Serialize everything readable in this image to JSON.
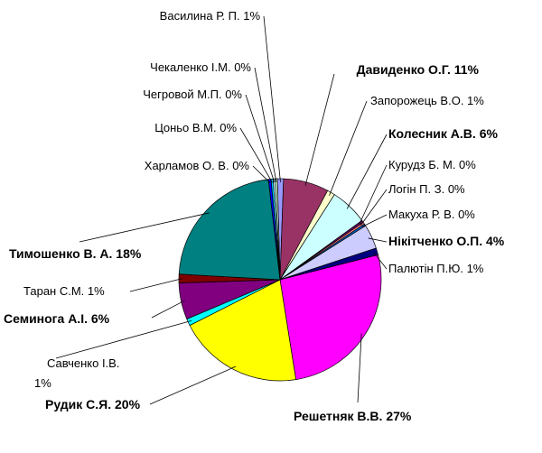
{
  "chart_data": {
    "type": "pie",
    "title": "",
    "slices": [
      {
        "label": "Василина Р. П.",
        "value": 1,
        "pct_label": "1%",
        "color": "#9999ff"
      },
      {
        "label": "Давиденко О.Г.",
        "value": 11,
        "pct_label": "11%",
        "color": "#993366"
      },
      {
        "label": "Запорожець В.О.",
        "value": 1,
        "pct_label": "1%",
        "color": "#ffffcc"
      },
      {
        "label": "Колесник А.В.",
        "value": 6,
        "pct_label": "6%",
        "color": "#ccffff"
      },
      {
        "label": "Курудз Б. М.",
        "value": 0,
        "pct_label": "0%",
        "color": "#660066"
      },
      {
        "label": "Логін П. З.",
        "value": 0,
        "pct_label": "0%",
        "color": "#ff8080"
      },
      {
        "label": "Макуха Р. В.",
        "value": 0,
        "pct_label": "0%",
        "color": "#0066cc"
      },
      {
        "label": "Нікітченко О.П.",
        "value": 4,
        "pct_label": "4%",
        "color": "#ccccff"
      },
      {
        "label": "Палютін П.Ю.",
        "value": 1,
        "pct_label": "1%",
        "color": "#000080"
      },
      {
        "label": "Решетняк В.В.",
        "value": 27,
        "pct_label": "27%",
        "color": "#ff00ff"
      },
      {
        "label": "Рудик С.Я.",
        "value": 20,
        "pct_label": "20%",
        "color": "#ffff00"
      },
      {
        "label": "Савченко І.В.",
        "value": 1,
        "pct_label": "1%",
        "color": "#00ffff"
      },
      {
        "label": "Семинога А.І.",
        "value": 6,
        "pct_label": "6%",
        "color": "#800080"
      },
      {
        "label": "Таран С.М.",
        "value": 1,
        "pct_label": "1%",
        "color": "#800000"
      },
      {
        "label": "Тимошенко В. А.",
        "value": 18,
        "pct_label": "18%",
        "color": "#008080"
      },
      {
        "label": "Харламов О. В.",
        "value": 0,
        "pct_label": "0%",
        "color": "#0000ff"
      },
      {
        "label": "Цоньо В.М.",
        "value": 0,
        "pct_label": "0%",
        "color": "#00ccff"
      },
      {
        "label": "Чегровой М.П.",
        "value": 0,
        "pct_label": "0%",
        "color": "#ccffff"
      },
      {
        "label": "Чекаленко І.М.",
        "value": 0,
        "pct_label": "0%",
        "color": "#ccffcc"
      }
    ],
    "label_colors": {
      "red": "#ff0000",
      "blue": "#0000ff",
      "black": "#000000"
    }
  }
}
